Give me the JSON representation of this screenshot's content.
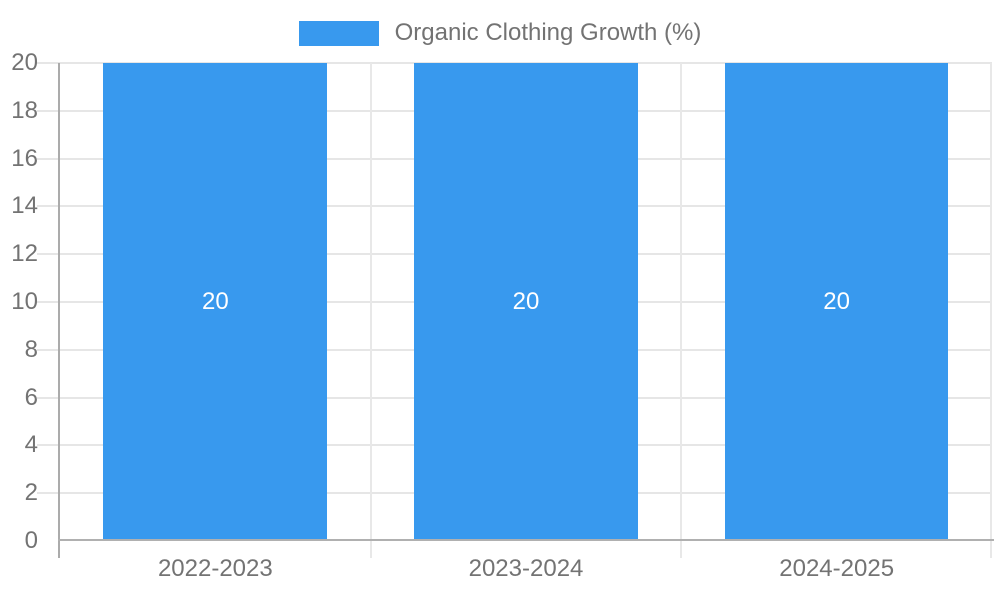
{
  "legend": {
    "label": "Organic Clothing Growth (%)"
  },
  "chart_data": {
    "type": "bar",
    "title": "Organic Clothing Growth (%)",
    "categories": [
      "2022-2023",
      "2023-2024",
      "2024-2025"
    ],
    "series": [
      {
        "name": "Organic Clothing Growth (%)",
        "values": [
          20,
          20,
          20
        ],
        "color": "#3899EE",
        "data_labels": [
          "20",
          "20",
          "20"
        ],
        "data_label_color": "#ffffff"
      }
    ],
    "xlabel": "",
    "ylabel": "",
    "ylim": [
      0,
      20
    ],
    "y_ticks": [
      0,
      2,
      4,
      6,
      8,
      10,
      12,
      14,
      16,
      18,
      20
    ],
    "grid": true,
    "legend_position": "top-center",
    "colors": {
      "grid": "#e6e6e6",
      "axis_border": "#ababab",
      "tick_label": "#737373",
      "background": "#ffffff"
    }
  }
}
